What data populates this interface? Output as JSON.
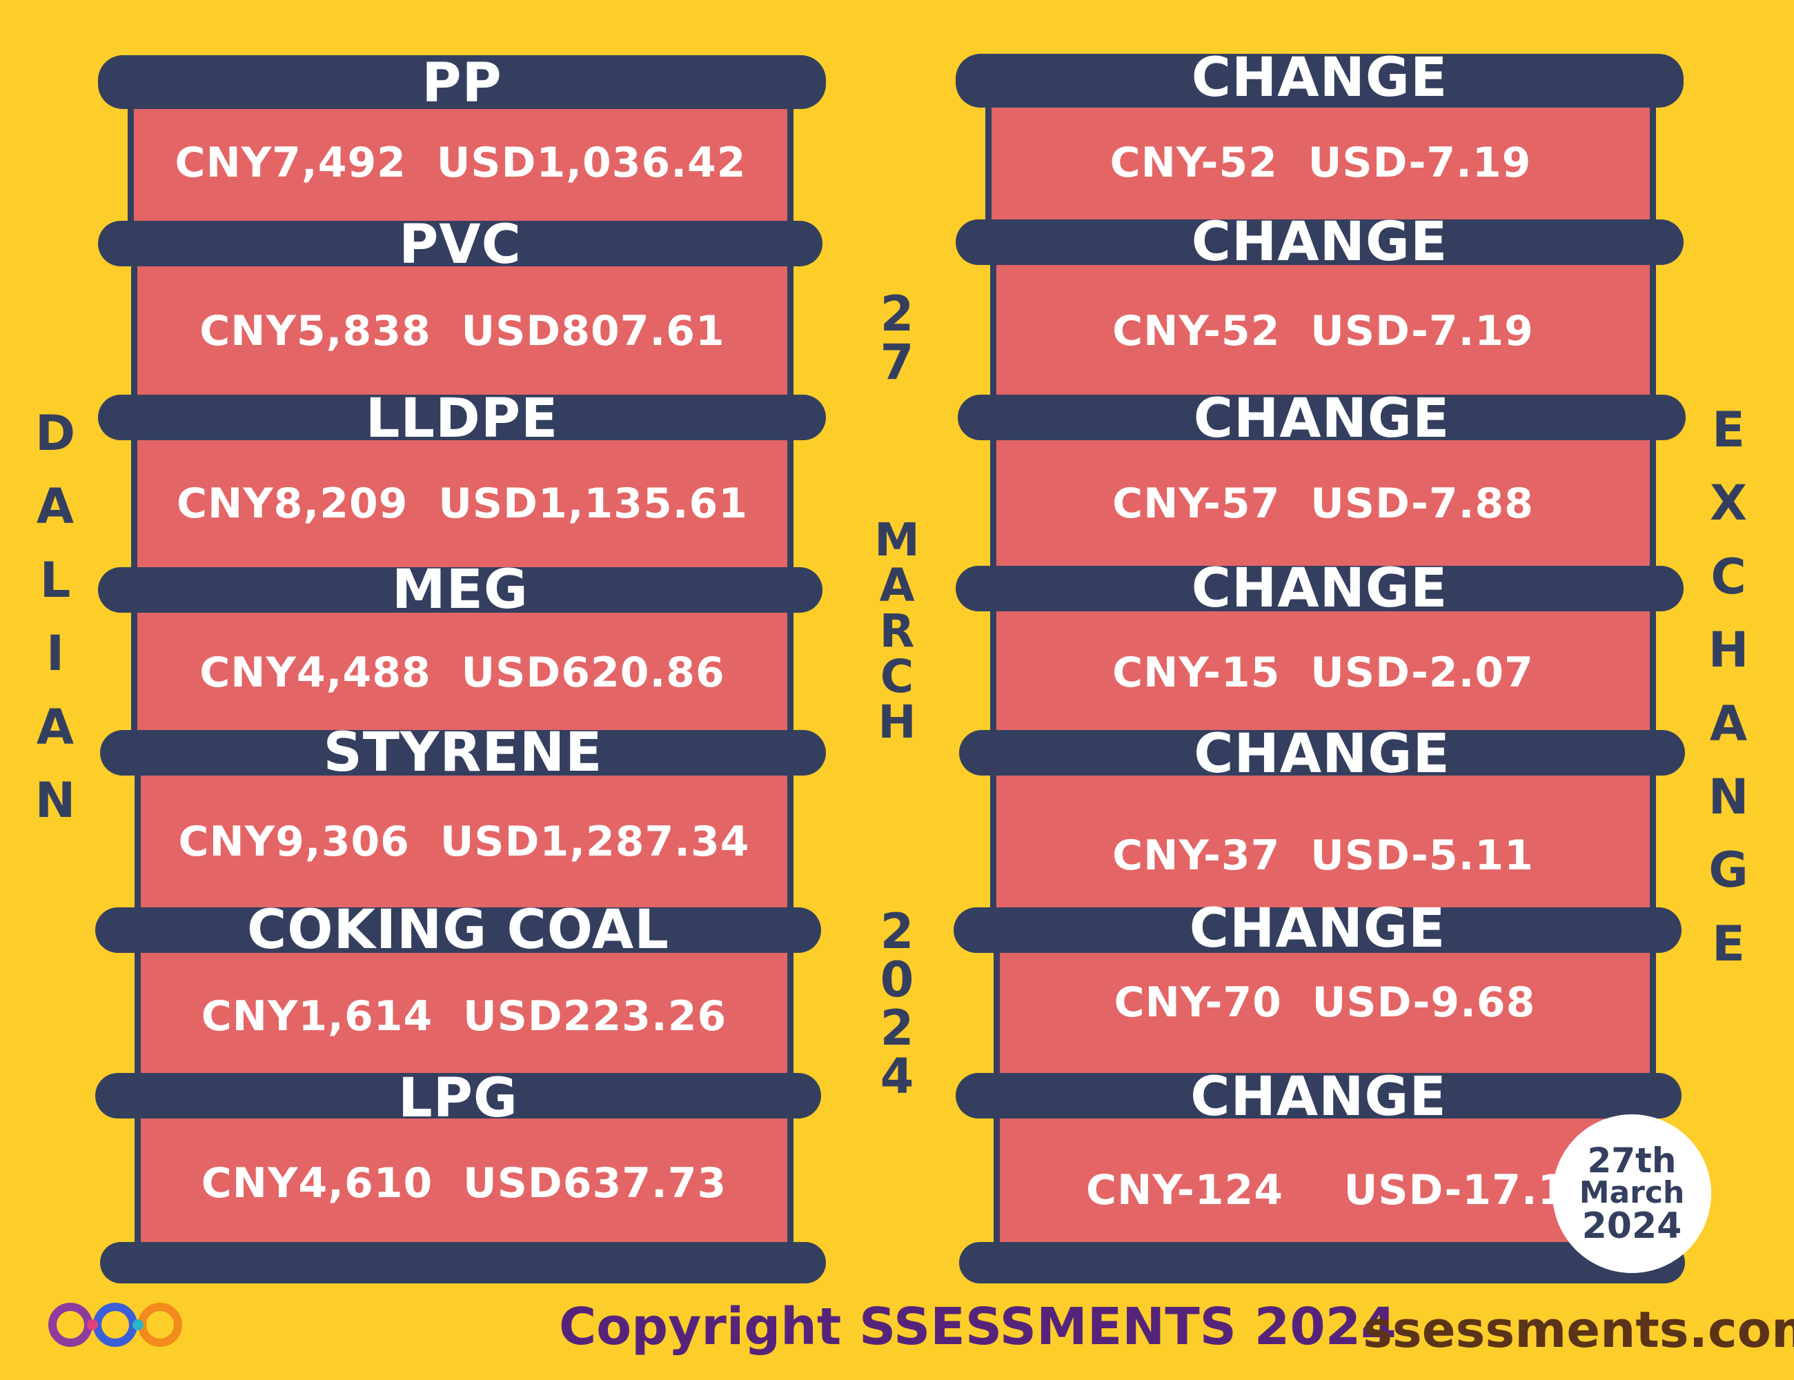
{
  "left_column": {
    "items": [
      {
        "label": "PP",
        "value": "CNY7,492  USD1,036.42"
      },
      {
        "label": "PVC",
        "value": "CNY5,838  USD807.61"
      },
      {
        "label": "LLDPE",
        "value": "CNY8,209  USD1,135.61"
      },
      {
        "label": "MEG",
        "value": "CNY4,488  USD620.86"
      },
      {
        "label": "STYRENE",
        "value": "CNY9,306  USD1,287.34"
      },
      {
        "label": "COKING COAL",
        "value": "CNY1,614  USD223.26"
      },
      {
        "label": "LPG",
        "value": "CNY4,610  USD637.73"
      }
    ]
  },
  "right_column": {
    "items": [
      {
        "label": "CHANGE",
        "value": "CNY-52  USD-7.19"
      },
      {
        "label": "CHANGE",
        "value": "CNY-52  USD-7.19"
      },
      {
        "label": "CHANGE",
        "value": "CNY-57  USD-7.88"
      },
      {
        "label": "CHANGE",
        "value": "CNY-15  USD-2.07"
      },
      {
        "label": "CHANGE",
        "value": "CNY-37  USD-5.11"
      },
      {
        "label": "CHANGE",
        "value": "CNY-70  USD-9.68"
      },
      {
        "label": "CHANGE",
        "value": "CNY-124    USD-17.15"
      }
    ]
  },
  "side_left_letters": [
    "D",
    "A",
    "L",
    "I",
    "A",
    "N"
  ],
  "side_right_letters": [
    "E",
    "X",
    "C",
    "H",
    "A",
    "N",
    "G",
    "E"
  ],
  "center_day": [
    "2",
    "7"
  ],
  "center_month": [
    "M",
    "A",
    "R",
    "C",
    "H"
  ],
  "center_year": [
    "2",
    "0",
    "2",
    "4"
  ],
  "badge": {
    "line1": "27th",
    "line2": "March",
    "line3": "2024"
  },
  "footer": {
    "copyright": "Copyright SSESSMENTS 2024",
    "site": "ssessments.com"
  },
  "colors": {
    "background": "#FDCE2A",
    "bar": "#343F5F",
    "panel": "#E46566",
    "copyright": "#55247A",
    "site": "#5A3318"
  },
  "logo_icon": "infinity-loops-logo-icon"
}
